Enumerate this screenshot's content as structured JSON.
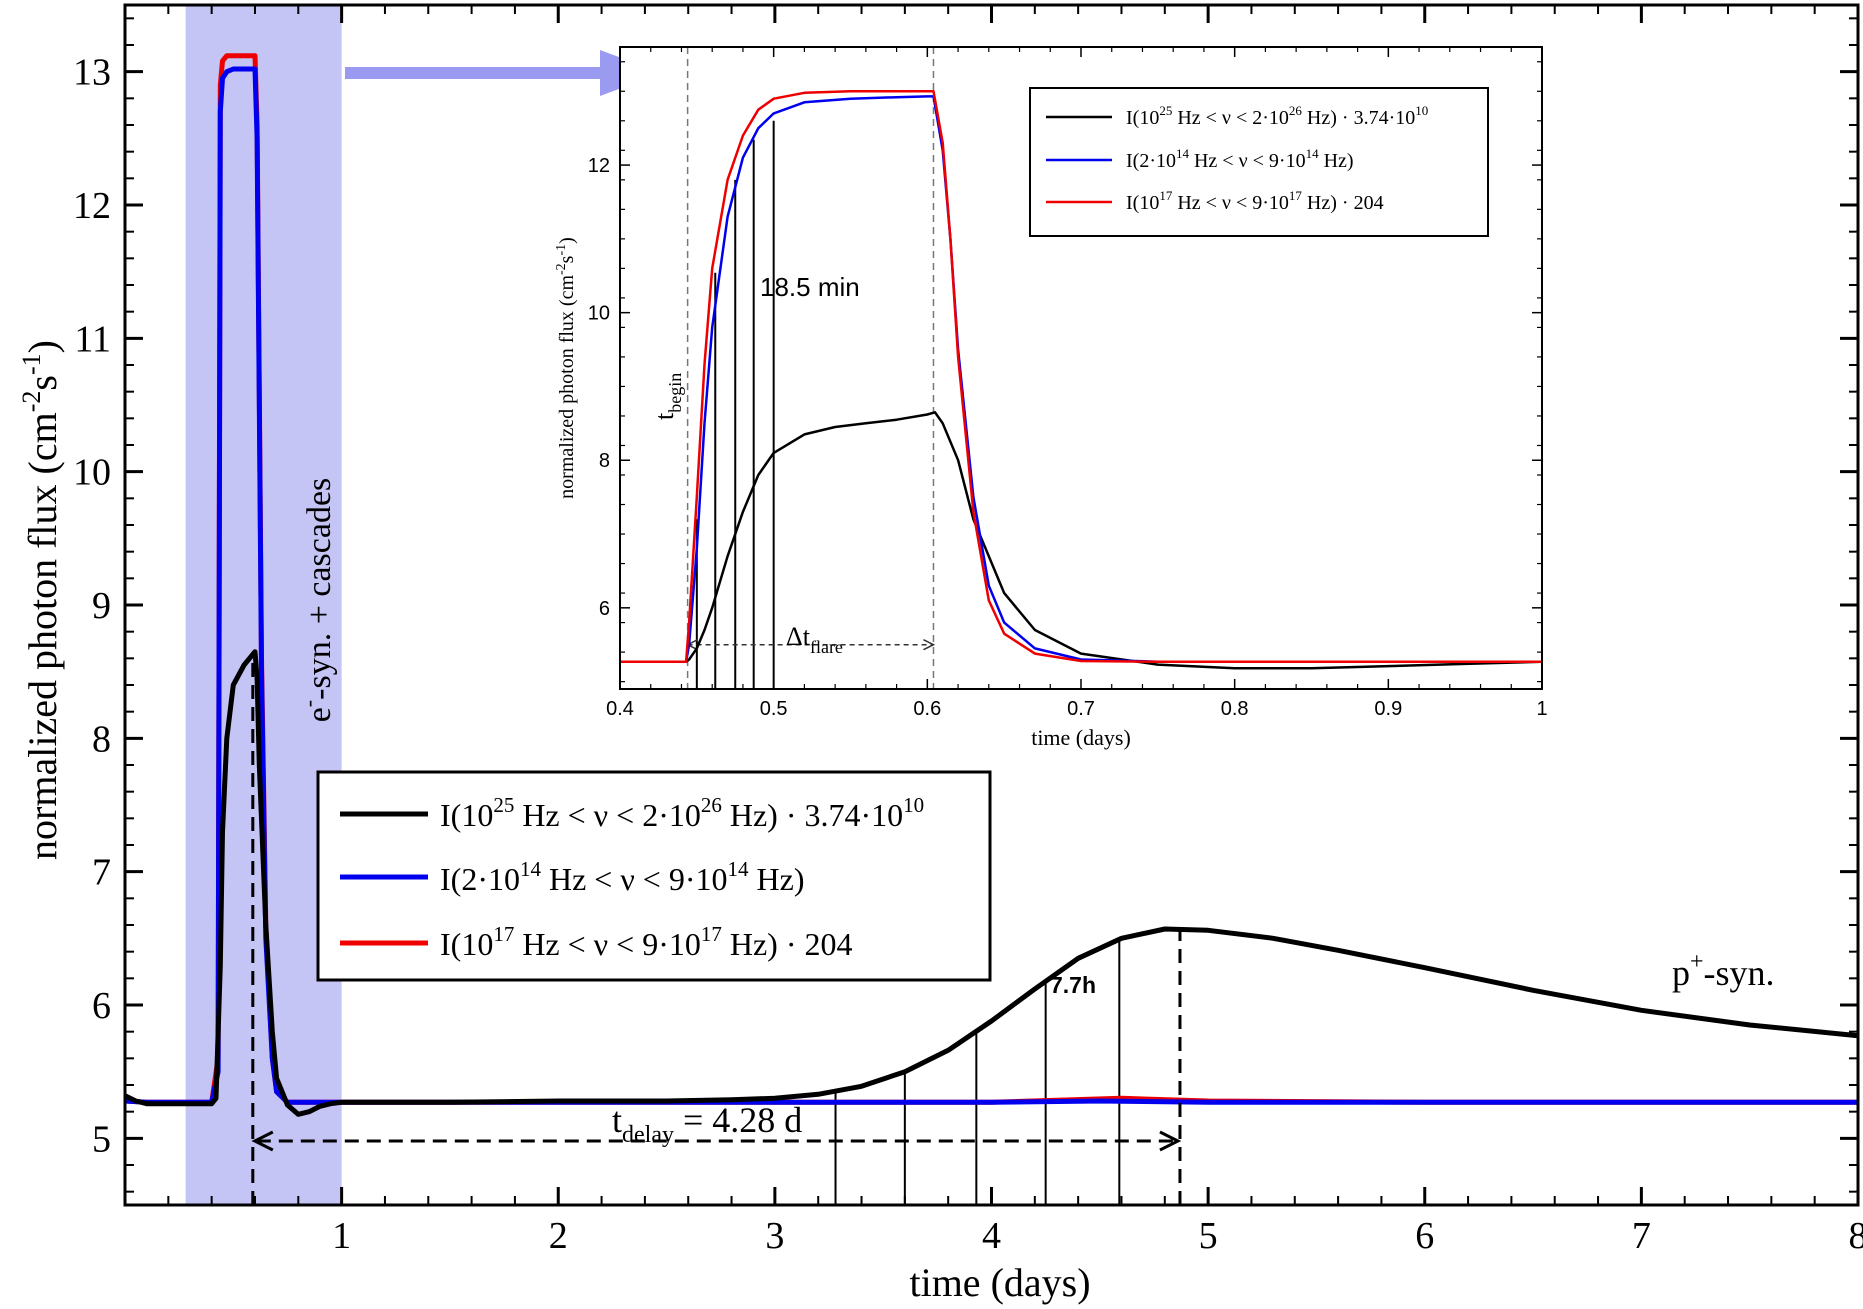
{
  "chart_data": [
    {
      "type": "line",
      "name": "main",
      "xlabel": "time (days)",
      "ylabel": "normalized photon flux (cm",
      "ylabel_sup1": "-2",
      "ylabel_mid": "s",
      "ylabel_sup2": "-1",
      "ylabel_end": ")",
      "xlim": [
        0,
        8
      ],
      "ylim": [
        4.5,
        13.5
      ],
      "xticks": [
        1,
        2,
        3,
        4,
        5,
        6,
        7,
        8
      ],
      "yticks": [
        5,
        6,
        7,
        8,
        9,
        10,
        11,
        12,
        13
      ],
      "shaded_region": {
        "x": [
          0.28,
          1.0
        ],
        "color": "#c4c4f5"
      },
      "series": [
        {
          "name": "I(10^25 Hz < ν < 2·10^26 Hz) · 3.74·10^10",
          "color": "#000000",
          "x": [
            0,
            0.05,
            0.1,
            0.2,
            0.35,
            0.4,
            0.42,
            0.44,
            0.45,
            0.47,
            0.5,
            0.55,
            0.6,
            0.61,
            0.62,
            0.65,
            0.68,
            0.7,
            0.75,
            0.8,
            0.85,
            0.9,
            0.95,
            1.0,
            1.2,
            1.5,
            2.0,
            2.5,
            2.8,
            3.0,
            3.2,
            3.4,
            3.6,
            3.8,
            4.0,
            4.2,
            4.4,
            4.6,
            4.8,
            5.0,
            5.3,
            5.6,
            6.0,
            6.5,
            7.0,
            7.5,
            8.0
          ],
          "y": [
            5.32,
            5.28,
            5.26,
            5.26,
            5.26,
            5.26,
            5.3,
            6.3,
            7.3,
            8.0,
            8.4,
            8.55,
            8.65,
            8.45,
            7.8,
            6.6,
            5.8,
            5.45,
            5.25,
            5.18,
            5.2,
            5.24,
            5.26,
            5.27,
            5.27,
            5.27,
            5.28,
            5.28,
            5.29,
            5.3,
            5.33,
            5.39,
            5.5,
            5.66,
            5.88,
            6.12,
            6.35,
            6.5,
            6.57,
            6.56,
            6.5,
            6.41,
            6.28,
            6.11,
            5.96,
            5.85,
            5.77
          ]
        },
        {
          "name": "I(2·10^14 Hz < ν < 9·10^14 Hz)",
          "color": "#0000ee",
          "x": [
            0,
            0.1,
            0.3,
            0.4,
            0.43,
            0.44,
            0.45,
            0.47,
            0.5,
            0.55,
            0.6,
            0.61,
            0.63,
            0.65,
            0.68,
            0.7,
            0.75,
            0.8,
            1.0,
            2.0,
            3.0,
            4.0,
            4.5,
            5.0,
            6.0,
            7.0,
            8.0
          ],
          "y": [
            5.28,
            5.27,
            5.27,
            5.27,
            5.5,
            12.7,
            12.95,
            13.0,
            13.02,
            13.02,
            13.02,
            12.5,
            8.5,
            6.5,
            5.6,
            5.35,
            5.27,
            5.27,
            5.27,
            5.27,
            5.27,
            5.27,
            5.28,
            5.27,
            5.27,
            5.27,
            5.27
          ]
        },
        {
          "name": "I(10^17 Hz < ν < 9·10^17 Hz) · 204",
          "color": "#ee0000",
          "x": [
            0,
            0.1,
            0.3,
            0.4,
            0.43,
            0.44,
            0.45,
            0.47,
            0.5,
            0.55,
            0.6,
            0.61,
            0.63,
            0.65,
            0.68,
            0.7,
            0.75,
            0.8,
            1.0,
            2.0,
            3.0,
            4.0,
            4.6,
            5.0,
            6.0,
            7.0,
            8.0
          ],
          "y": [
            5.28,
            5.27,
            5.27,
            5.27,
            5.6,
            12.9,
            13.08,
            13.12,
            13.12,
            13.12,
            13.12,
            12.6,
            8.6,
            6.6,
            5.6,
            5.35,
            5.27,
            5.27,
            5.27,
            5.27,
            5.27,
            5.27,
            5.3,
            5.28,
            5.27,
            5.27,
            5.27
          ]
        }
      ],
      "legend": [
        "I(10^25 Hz < ν < 2·10^26 Hz) · 3.74·10^10",
        "I(2·10^14 Hz < ν < 9·10^14 Hz)",
        "I(10^17 Hz < ν < 9·10^17 Hz) · 204"
      ],
      "legend_placement": "center-left",
      "vlines_x": [
        3.28,
        3.6,
        3.93,
        4.25,
        4.59
      ],
      "peak_x": 4.87,
      "flare_end_x": 0.59,
      "arrow_y": 4.98,
      "annotations": {
        "region_label": "-syn. + cascades",
        "region_label_prefix": "e",
        "region_label_sup": "-",
        "psyn_prefix": "p",
        "psyn_sup": "+",
        "psyn_suffix": "-syn.",
        "delay_prefix": "t",
        "delay_sub": "delay",
        "delay_value": " = 4.28 d",
        "interval": "7.7h"
      }
    },
    {
      "type": "line",
      "name": "inset",
      "xlabel": "time (days)",
      "ylabel": "normalized photon flux (cm",
      "xlim": [
        0.4,
        1.0
      ],
      "ylim": [
        4.9,
        13.6
      ],
      "xticks": [
        0.4,
        0.5,
        0.6,
        0.7,
        0.8,
        0.9,
        1.0
      ],
      "xtick_labels": [
        "0.4",
        "0.5",
        "0.6",
        "0.7",
        "0.8",
        "0.9",
        "1"
      ],
      "yticks": [
        6,
        8,
        10,
        12
      ],
      "series": [
        {
          "color": "#000000",
          "x": [
            0.4,
            0.443,
            0.445,
            0.45,
            0.455,
            0.46,
            0.47,
            0.48,
            0.49,
            0.5,
            0.52,
            0.54,
            0.56,
            0.58,
            0.6,
            0.605,
            0.61,
            0.62,
            0.63,
            0.65,
            0.67,
            0.7,
            0.75,
            0.8,
            0.85,
            0.9,
            0.95,
            1.0
          ],
          "y": [
            5.27,
            5.27,
            5.3,
            5.45,
            5.7,
            6.0,
            6.7,
            7.3,
            7.8,
            8.1,
            8.35,
            8.45,
            8.5,
            8.55,
            8.62,
            8.65,
            8.5,
            8.0,
            7.2,
            6.2,
            5.7,
            5.38,
            5.23,
            5.18,
            5.18,
            5.21,
            5.24,
            5.27
          ]
        },
        {
          "color": "#0000ee",
          "x": [
            0.4,
            0.443,
            0.445,
            0.45,
            0.455,
            0.46,
            0.47,
            0.48,
            0.49,
            0.5,
            0.52,
            0.55,
            0.58,
            0.6,
            0.604,
            0.61,
            0.615,
            0.62,
            0.63,
            0.64,
            0.65,
            0.67,
            0.7,
            0.75,
            0.8,
            1.0
          ],
          "y": [
            5.27,
            5.27,
            5.5,
            6.8,
            8.5,
            9.8,
            11.3,
            12.1,
            12.5,
            12.7,
            12.85,
            12.9,
            12.92,
            12.93,
            12.93,
            12.2,
            11.0,
            9.5,
            7.5,
            6.3,
            5.8,
            5.45,
            5.3,
            5.27,
            5.27,
            5.27
          ]
        },
        {
          "color": "#ee0000",
          "x": [
            0.4,
            0.443,
            0.445,
            0.45,
            0.455,
            0.46,
            0.47,
            0.48,
            0.49,
            0.5,
            0.52,
            0.55,
            0.58,
            0.6,
            0.604,
            0.61,
            0.615,
            0.62,
            0.63,
            0.64,
            0.65,
            0.67,
            0.7,
            0.75,
            0.8,
            1.0
          ],
          "y": [
            5.27,
            5.27,
            5.8,
            7.5,
            9.3,
            10.6,
            11.8,
            12.4,
            12.75,
            12.9,
            12.98,
            13.0,
            13.0,
            13.0,
            13.0,
            12.3,
            11.0,
            9.4,
            7.3,
            6.1,
            5.65,
            5.38,
            5.28,
            5.27,
            5.27,
            5.27
          ]
        }
      ],
      "vlines_x": [
        0.45,
        0.462,
        0.475,
        0.487,
        0.5
      ],
      "t_begin_x": 0.444,
      "flare_end_x": 0.604,
      "arrow_y": 5.5,
      "annotations": {
        "interval": "18.5 min",
        "tbegin_prefix": "t",
        "tbegin_sub": "begin",
        "dtflare_prefix": "Δt",
        "dtflare_sub": "flare"
      }
    }
  ],
  "legend_text": {
    "black": {
      "p1": "I(10",
      "s1": "25",
      "p2": " Hz < ν < 2·10",
      "s2": "26",
      "p3": " Hz) · 3.74·10",
      "s3": "10",
      "p4": ""
    },
    "blue": {
      "p1": "I(2·10",
      "s1": "14",
      "p2": " Hz < ν < 9·10",
      "s2": "14",
      "p3": " Hz)",
      "s3": "",
      "p4": ""
    },
    "red": {
      "p1": "I(10",
      "s1": "17",
      "p2": " Hz < ν < 9·10",
      "s2": "17",
      "p3": " Hz) · 204",
      "s3": "",
      "p4": ""
    }
  },
  "colors": {
    "shade": "#c4c4f5",
    "arrow": "#9a9af0"
  }
}
